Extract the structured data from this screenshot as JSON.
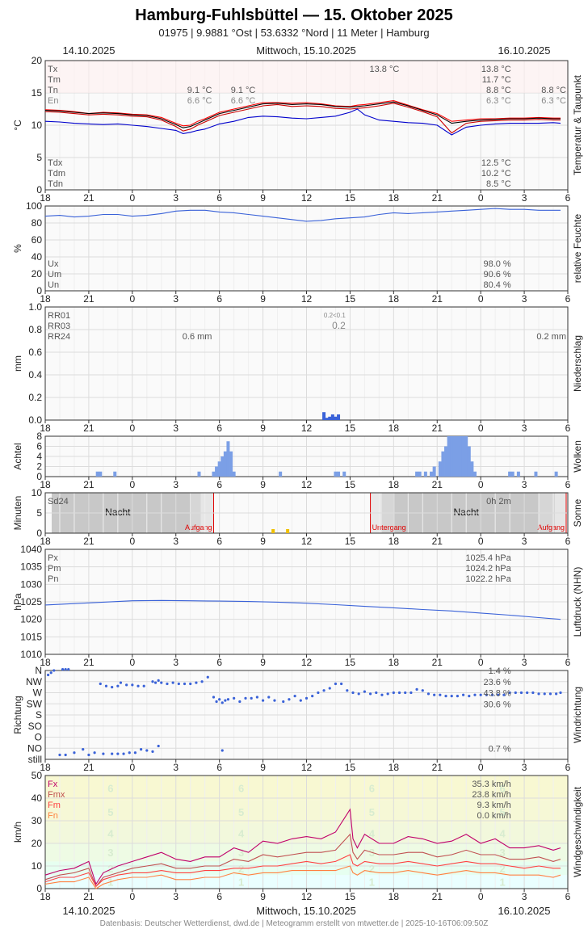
{
  "header": {
    "title": "Hamburg-Fuhlsbüttel  —  15. Oktober 2025",
    "subtitle": "01975  |  9.9881 °Ost  |  53.6332 °Nord  |  11 Meter  |  Hamburg",
    "date_left": "14.10.2025",
    "date_center": "Mittwoch, 15.10.2025",
    "date_right": "16.10.2025"
  },
  "footer": {
    "credit": "Datenbasis: Deutscher Wetterdienst, dwd.de | Meteogramm erstellt von mtwetter.de | 2025-10-16T06:09:50Z",
    "date_left": "14.10.2025",
    "date_center": "Mittwoch, 15.10.2025",
    "date_right": "16.10.2025"
  },
  "colors": {
    "tx": "#ff0000",
    "tm": "#000000",
    "tn": "#cc0000",
    "td": "#0000cc",
    "humidity": "#3a62d8",
    "pressure": "#3a62d8",
    "wind_dir": "#3a62d8",
    "precip": "#3a62d8",
    "clouds": "#7b9fe6",
    "sun": "#f0c000",
    "fx": "#c0006a",
    "fmx": "#c05050",
    "fm": "#ff4040",
    "fn": "#ff8040",
    "label_gray": "#555555",
    "grid": "#e0e0e0"
  },
  "x_axis": {
    "tick_labels": [
      "18",
      "21",
      "0",
      "3",
      "6",
      "9",
      "12",
      "15",
      "18",
      "21",
      "0",
      "3",
      "6"
    ]
  },
  "chart_data": [
    {
      "id": "temperature",
      "type": "line",
      "ylabel": "°C",
      "side_label": "Temperatur & Taupunkt",
      "ylim": [
        0,
        20
      ],
      "yticks": [
        0,
        5,
        10,
        15,
        20
      ],
      "x_hours": [
        0,
        1,
        2,
        3,
        4,
        5,
        6,
        7,
        8,
        9,
        9.5,
        10,
        10.5,
        11,
        12,
        13,
        14,
        15,
        16,
        17,
        18,
        19,
        20,
        21,
        21.5,
        22,
        23,
        24,
        25,
        26,
        27,
        28,
        29,
        30,
        31,
        32,
        33,
        34,
        35,
        35.5
      ],
      "series": [
        {
          "name": "Tx",
          "color_key": "tx",
          "values": [
            12.4,
            12.3,
            12.1,
            11.8,
            12.0,
            11.9,
            11.7,
            11.6,
            11.2,
            10.3,
            9.9,
            10.0,
            10.6,
            11.0,
            12.0,
            12.5,
            13.0,
            13.5,
            13.5,
            13.4,
            13.5,
            13.3,
            13.0,
            12.9,
            13.1,
            13.2,
            13.5,
            13.8,
            13.1,
            12.4,
            11.8,
            10.6,
            10.8,
            11.0,
            11.0,
            11.1,
            11.1,
            11.2,
            11.1,
            11.1
          ]
        },
        {
          "name": "Tm",
          "color_key": "tm",
          "values": [
            12.3,
            12.2,
            12.0,
            11.8,
            11.9,
            11.8,
            11.6,
            11.5,
            11.0,
            10.1,
            9.6,
            9.8,
            10.3,
            10.8,
            11.8,
            12.3,
            12.8,
            13.3,
            13.4,
            13.2,
            13.3,
            13.2,
            12.9,
            12.8,
            12.9,
            13.0,
            13.3,
            13.6,
            13.0,
            12.3,
            11.6,
            10.3,
            10.6,
            10.8,
            10.9,
            11.0,
            11.0,
            11.1,
            11.0,
            11.0
          ]
        },
        {
          "name": "Tn",
          "color_key": "tn",
          "values": [
            12.1,
            12.0,
            11.8,
            11.6,
            11.7,
            11.6,
            11.4,
            11.3,
            10.8,
            9.8,
            9.1,
            9.4,
            10.0,
            10.5,
            11.5,
            12.0,
            12.5,
            13.0,
            13.2,
            12.9,
            13.0,
            12.9,
            12.6,
            12.5,
            12.6,
            12.7,
            13.0,
            13.4,
            12.8,
            12.1,
            11.3,
            8.8,
            10.3,
            10.6,
            10.7,
            10.8,
            10.8,
            10.9,
            10.8,
            10.8
          ]
        },
        {
          "name": "Td",
          "color_key": "td",
          "values": [
            10.6,
            10.5,
            10.3,
            10.2,
            10.1,
            10.2,
            10.0,
            9.8,
            9.5,
            9.2,
            8.7,
            8.9,
            9.2,
            9.4,
            10.2,
            10.6,
            11.2,
            11.4,
            11.3,
            11.1,
            11.0,
            11.2,
            11.4,
            12.0,
            12.5,
            11.6,
            10.8,
            10.6,
            10.4,
            10.3,
            10.0,
            8.5,
            9.7,
            10.0,
            10.2,
            10.3,
            10.3,
            10.3,
            10.4,
            10.3
          ]
        }
      ],
      "stat_labels_left": [
        "Tx",
        "Tm",
        "Tn",
        "En"
      ],
      "stat_labels_left_lower": [
        "Tdx",
        "Tdm",
        "Tdn"
      ],
      "annotations_mid": [
        {
          "label": "9.1 °C",
          "hour": 11.6,
          "row": 2
        },
        {
          "label": "6.6 °C",
          "hour": 11.6,
          "row": 3
        },
        {
          "label": "9.1 °C",
          "hour": 14.6,
          "row": 2
        },
        {
          "label": "6.6 °C",
          "hour": 14.6,
          "row": 3
        },
        {
          "label": "13.8 °C",
          "hour": 24.5,
          "row": 0
        }
      ],
      "summary": {
        "Tx": "13.8 °C",
        "Tm": "11.7 °C",
        "Tn": "8.8 °C",
        "En": "6.3 °C",
        "Tdx": "12.5 °C",
        "Tdm": "10.2 °C",
        "Tdn": "8.5 °C",
        "next_tn": "8.8 °C",
        "next_en": "6.3 °C"
      }
    },
    {
      "id": "humidity",
      "type": "line",
      "ylabel": "%",
      "side_label": "relative Feuchte",
      "ylim": [
        0,
        100
      ],
      "yticks": [
        0,
        20,
        40,
        60,
        80,
        100
      ],
      "x_hours": [
        0,
        1,
        2,
        3,
        4,
        5,
        6,
        7,
        8,
        9,
        10,
        11,
        12,
        13,
        14,
        15,
        16,
        17,
        18,
        19,
        20,
        21,
        22,
        23,
        24,
        25,
        26,
        27,
        28,
        29,
        30,
        31,
        32,
        33,
        34,
        35,
        35.5
      ],
      "series": [
        {
          "name": "U",
          "color_key": "humidity",
          "values": [
            88,
            89,
            87,
            88,
            90,
            90,
            88,
            89,
            91,
            94,
            95,
            95,
            93,
            92,
            90,
            88,
            86,
            84,
            82,
            83,
            85,
            86,
            87,
            90,
            92,
            91,
            92,
            93,
            94,
            95,
            96,
            97,
            96,
            96,
            95,
            95,
            95
          ]
        }
      ],
      "stat_labels": [
        "Ux",
        "Um",
        "Un"
      ],
      "summary": {
        "Ux": "98.0 %",
        "Um": "90.6 %",
        "Un": "80.4 %"
      }
    },
    {
      "id": "precipitation",
      "type": "bar",
      "ylabel": "mm",
      "side_label": "Niederschlag",
      "ylim": [
        0,
        1.0
      ],
      "yticks": [
        0,
        0.2,
        0.4,
        0.6,
        0.8,
        1.0
      ],
      "x_hours": [
        19.2,
        19.4,
        19.6,
        19.8,
        20.0,
        20.2
      ],
      "values": [
        0.07,
        0.02,
        0.03,
        0.05,
        0.03,
        0.05
      ],
      "stat_labels": [
        "RR01",
        "RR03",
        "RR24"
      ],
      "summary": {
        "rr24_day1": "0.6 mm",
        "rr24_day2": "0.2 mm",
        "rr01_small": "0.2<0.1",
        "rr03": "0.2"
      }
    },
    {
      "id": "clouds",
      "type": "bar",
      "ylabel": "Achtel",
      "side_label": "Wolken",
      "ylim": [
        0,
        8
      ],
      "yticks": [
        0,
        2,
        4,
        6,
        8
      ],
      "x_hours": [
        3.6,
        3.8,
        4.8,
        10.6,
        11.6,
        11.8,
        12.0,
        12.2,
        12.4,
        12.6,
        12.8,
        13.0,
        16.2,
        20.0,
        20.2,
        20.6,
        25.6,
        25.8,
        26.2,
        26.6,
        26.8,
        27.2,
        27.4,
        27.6,
        27.8,
        28.0,
        28.2,
        28.4,
        28.6,
        28.8,
        29.0,
        29.2,
        29.4,
        29.6,
        32.0,
        32.2,
        32.6,
        33.8,
        35.2
      ],
      "values": [
        1,
        1,
        1,
        1,
        1,
        2,
        3,
        4,
        5,
        7,
        5,
        1,
        1,
        1,
        1,
        1,
        1,
        1,
        1,
        1,
        2,
        3,
        5,
        6,
        8,
        8,
        8,
        8,
        8,
        8,
        8,
        6,
        3,
        1,
        1,
        1,
        1,
        1,
        1
      ]
    },
    {
      "id": "sunshine",
      "type": "bar",
      "ylabel": "Minuten",
      "side_label": "Sonne",
      "ylim": [
        0,
        10
      ],
      "yticks": [
        0,
        5,
        10
      ],
      "x_hours": [
        15.7,
        16.7
      ],
      "values": [
        1,
        1
      ],
      "night_label": "Nacht",
      "sunrise_label": "Aufgang",
      "sunset_label": "Untergang",
      "sunrise_hours": [
        11.6,
        36.0
      ],
      "sunset_hours": [
        22.4
      ],
      "stat_labels": [
        "Sd24"
      ],
      "summary": {
        "sd24": "0h 2m"
      }
    },
    {
      "id": "pressure",
      "type": "line",
      "ylabel": "hPa",
      "side_label": "Luftdruck (NHN)",
      "ylim": [
        1010,
        1040
      ],
      "yticks": [
        1010,
        1015,
        1020,
        1025,
        1030,
        1035,
        1040
      ],
      "x_hours": [
        0,
        2,
        4,
        6,
        8,
        10,
        12,
        14,
        16,
        18,
        20,
        22,
        24,
        26,
        28,
        30,
        32,
        34,
        35.5
      ],
      "series": [
        {
          "name": "P",
          "color_key": "pressure",
          "values": [
            1024.1,
            1024.5,
            1024.9,
            1025.3,
            1025.4,
            1025.3,
            1025.2,
            1025.1,
            1024.9,
            1024.6,
            1024.2,
            1023.7,
            1023.3,
            1022.8,
            1022.4,
            1021.8,
            1021.2,
            1020.5,
            1020.0
          ]
        }
      ],
      "stat_labels": [
        "Px",
        "Pm",
        "Pn"
      ],
      "summary": {
        "Px": "1025.4 hPa",
        "Pm": "1024.2 hPa",
        "Pn": "1022.2 hPa"
      }
    },
    {
      "id": "wind_direction",
      "type": "scatter",
      "ylabel": "Richtung",
      "side_label": "Windrichtung",
      "categories": [
        "still",
        "NO",
        "O",
        "SO",
        "S",
        "SW",
        "W",
        "NW",
        "N"
      ],
      "x_hours": [
        0.2,
        0.4,
        0.6,
        1.2,
        1.4,
        1.6,
        3.8,
        4.2,
        4.6,
        5.0,
        5.2,
        5.6,
        6.0,
        6.4,
        6.8,
        7.4,
        7.6,
        7.8,
        8.0,
        8.4,
        8.8,
        9.2,
        9.6,
        10.0,
        10.4,
        10.8,
        11.2,
        11.6,
        11.8,
        12.0,
        12.2,
        12.4,
        12.6,
        13.0,
        13.4,
        13.8,
        14.2,
        14.6,
        15.0,
        15.4,
        15.8,
        16.4,
        16.8,
        17.2,
        17.6,
        18.0,
        18.4,
        18.8,
        19.2,
        19.6,
        20.0,
        20.4,
        20.8,
        21.2,
        21.6,
        22.0,
        22.4,
        22.8,
        23.2,
        23.6,
        24.0,
        24.4,
        24.8,
        25.2,
        25.6,
        26.0,
        26.4,
        26.8,
        27.2,
        27.6,
        28.0,
        28.4,
        28.8,
        29.2,
        29.6,
        30.0,
        30.4,
        30.8,
        31.2,
        31.6,
        32.0,
        32.4,
        32.8,
        33.2,
        33.6,
        34.0,
        34.4,
        34.8,
        35.2,
        35.5
      ],
      "values": [
        7.6,
        7.8,
        8.0,
        8.1,
        8.1,
        8.1,
        6.8,
        6.6,
        6.5,
        6.6,
        6.9,
        6.7,
        6.7,
        6.6,
        6.6,
        7.0,
        6.9,
        7.1,
        6.9,
        6.8,
        6.9,
        6.8,
        6.8,
        6.8,
        6.9,
        7.0,
        7.4,
        5.6,
        5.2,
        5.4,
        5.1,
        5.3,
        5.4,
        5.5,
        5.2,
        5.5,
        5.5,
        5.6,
        5.3,
        5.6,
        5.3,
        5.2,
        5.4,
        5.7,
        5.3,
        5.5,
        5.7,
        6.0,
        6.2,
        6.4,
        6.8,
        6.8,
        6.2,
        6.0,
        5.9,
        6.1,
        5.9,
        6.0,
        5.8,
        5.9,
        6.0,
        6.0,
        6.0,
        6.0,
        6.3,
        6.2,
        5.9,
        5.8,
        5.8,
        5.7,
        5.7,
        5.7,
        5.8,
        5.7,
        5.8,
        5.8,
        5.8,
        5.8,
        5.8,
        5.8,
        6.0,
        6.0,
        6.0,
        6.0,
        6.0,
        5.9,
        5.9,
        5.9,
        5.9,
        6.0
      ],
      "extra_points": {
        "x_hours": [
          1.0,
          1.4,
          2.0,
          2.6,
          3.0,
          3.4,
          4.0,
          4.6,
          5.0,
          5.4,
          5.8,
          6.2,
          6.6,
          7.0,
          7.4,
          7.8,
          12.2
        ],
        "values": [
          0.4,
          0.4,
          0.6,
          0.9,
          0.4,
          0.6,
          0.5,
          0.5,
          0.5,
          0.5,
          0.6,
          0.6,
          0.9,
          0.8,
          0.7,
          1.2,
          0.8
        ]
      },
      "summary": {
        "n": "1.4 %",
        "nw": "23.6 %",
        "w": "43.8 %",
        "sw": "30.6 %",
        "no": "0.7 %"
      }
    },
    {
      "id": "wind_speed",
      "type": "line",
      "ylabel": "km/h",
      "side_label": "Windgeschwindigkeit",
      "ylim": [
        0,
        50
      ],
      "yticks": [
        0,
        10,
        20,
        30,
        40,
        50
      ],
      "beaufort_labels": [
        "1",
        "2",
        "3",
        "4",
        "5",
        "6"
      ],
      "beaufort_bounds": [
        0,
        6,
        12,
        20,
        29,
        39,
        50
      ],
      "x_hours": [
        0,
        1,
        2,
        3,
        3.5,
        4,
        5,
        6,
        7,
        8,
        9,
        10,
        11,
        12,
        13,
        14,
        15,
        16,
        17,
        18,
        19,
        20,
        21,
        21.2,
        21.5,
        22,
        23,
        24,
        25,
        26,
        27,
        28,
        29,
        30,
        31,
        32,
        33,
        34,
        35,
        35.5
      ],
      "series": [
        {
          "name": "Fx",
          "color_key": "fx",
          "values": [
            6,
            8,
            9,
            12,
            2,
            7,
            10,
            12,
            14,
            16,
            13,
            12,
            14,
            14,
            18,
            16,
            21,
            20,
            22,
            23,
            22,
            25,
            35,
            22,
            18,
            24,
            20,
            20,
            23,
            22,
            20,
            21,
            24,
            20,
            22,
            18,
            18,
            19,
            17,
            18
          ]
        },
        {
          "name": "Fmx",
          "color_key": "fmx",
          "values": [
            4,
            6,
            7,
            9,
            1,
            5,
            7,
            9,
            10,
            11,
            9,
            9,
            10,
            10,
            13,
            12,
            15,
            14,
            15,
            16,
            16,
            17,
            24,
            16,
            13,
            17,
            15,
            15,
            16,
            16,
            14,
            15,
            17,
            15,
            15,
            13,
            13,
            14,
            12,
            13
          ]
        },
        {
          "name": "Fm",
          "color_key": "fm",
          "values": [
            3,
            5,
            5,
            7,
            1,
            4,
            6,
            7,
            7,
            8,
            7,
            7,
            8,
            8,
            9,
            9,
            10,
            10,
            11,
            12,
            11,
            12,
            15,
            11,
            10,
            12,
            11,
            11,
            12,
            11,
            10,
            11,
            12,
            11,
            11,
            10,
            9,
            10,
            9,
            9
          ]
        },
        {
          "name": "Fn",
          "color_key": "fn",
          "values": [
            2,
            3,
            3,
            5,
            0,
            2,
            4,
            5,
            5,
            6,
            4,
            4,
            5,
            5,
            7,
            6,
            7,
            7,
            8,
            8,
            8,
            8,
            10,
            7,
            6,
            8,
            7,
            7,
            8,
            7,
            6,
            7,
            8,
            7,
            7,
            6,
            6,
            6,
            5,
            6
          ]
        }
      ],
      "stat_labels": [
        "Fx",
        "Fmx",
        "Fm",
        "Fn"
      ],
      "summary": {
        "Fx": "35.3 km/h",
        "Fmx": "23.8 km/h",
        "Fm": "9.3 km/h",
        "Fn": "0.0 km/h"
      }
    }
  ]
}
